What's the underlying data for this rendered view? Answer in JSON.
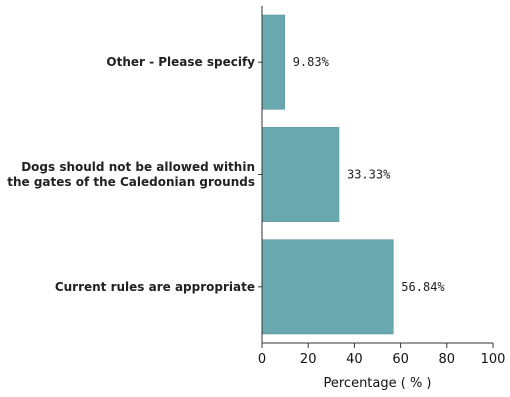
{
  "chart_data": {
    "type": "bar",
    "orientation": "horizontal",
    "categories": [
      [
        "Other - Please specify"
      ],
      [
        "Dogs should not be allowed within",
        "the gates of the Caledonian grounds"
      ],
      [
        "Current rules are appropriate"
      ]
    ],
    "values": [
      9.83,
      33.33,
      56.84
    ],
    "value_labels": [
      "9.83%",
      "33.33%",
      "56.84%"
    ],
    "xlabel": "Percentage ( % )",
    "xlim": [
      0,
      100
    ],
    "xticks": [
      0,
      20,
      40,
      60,
      80,
      100
    ],
    "grid": false,
    "bar_color": "#6aa8b0",
    "bar_stroke": "#4f8f98"
  }
}
